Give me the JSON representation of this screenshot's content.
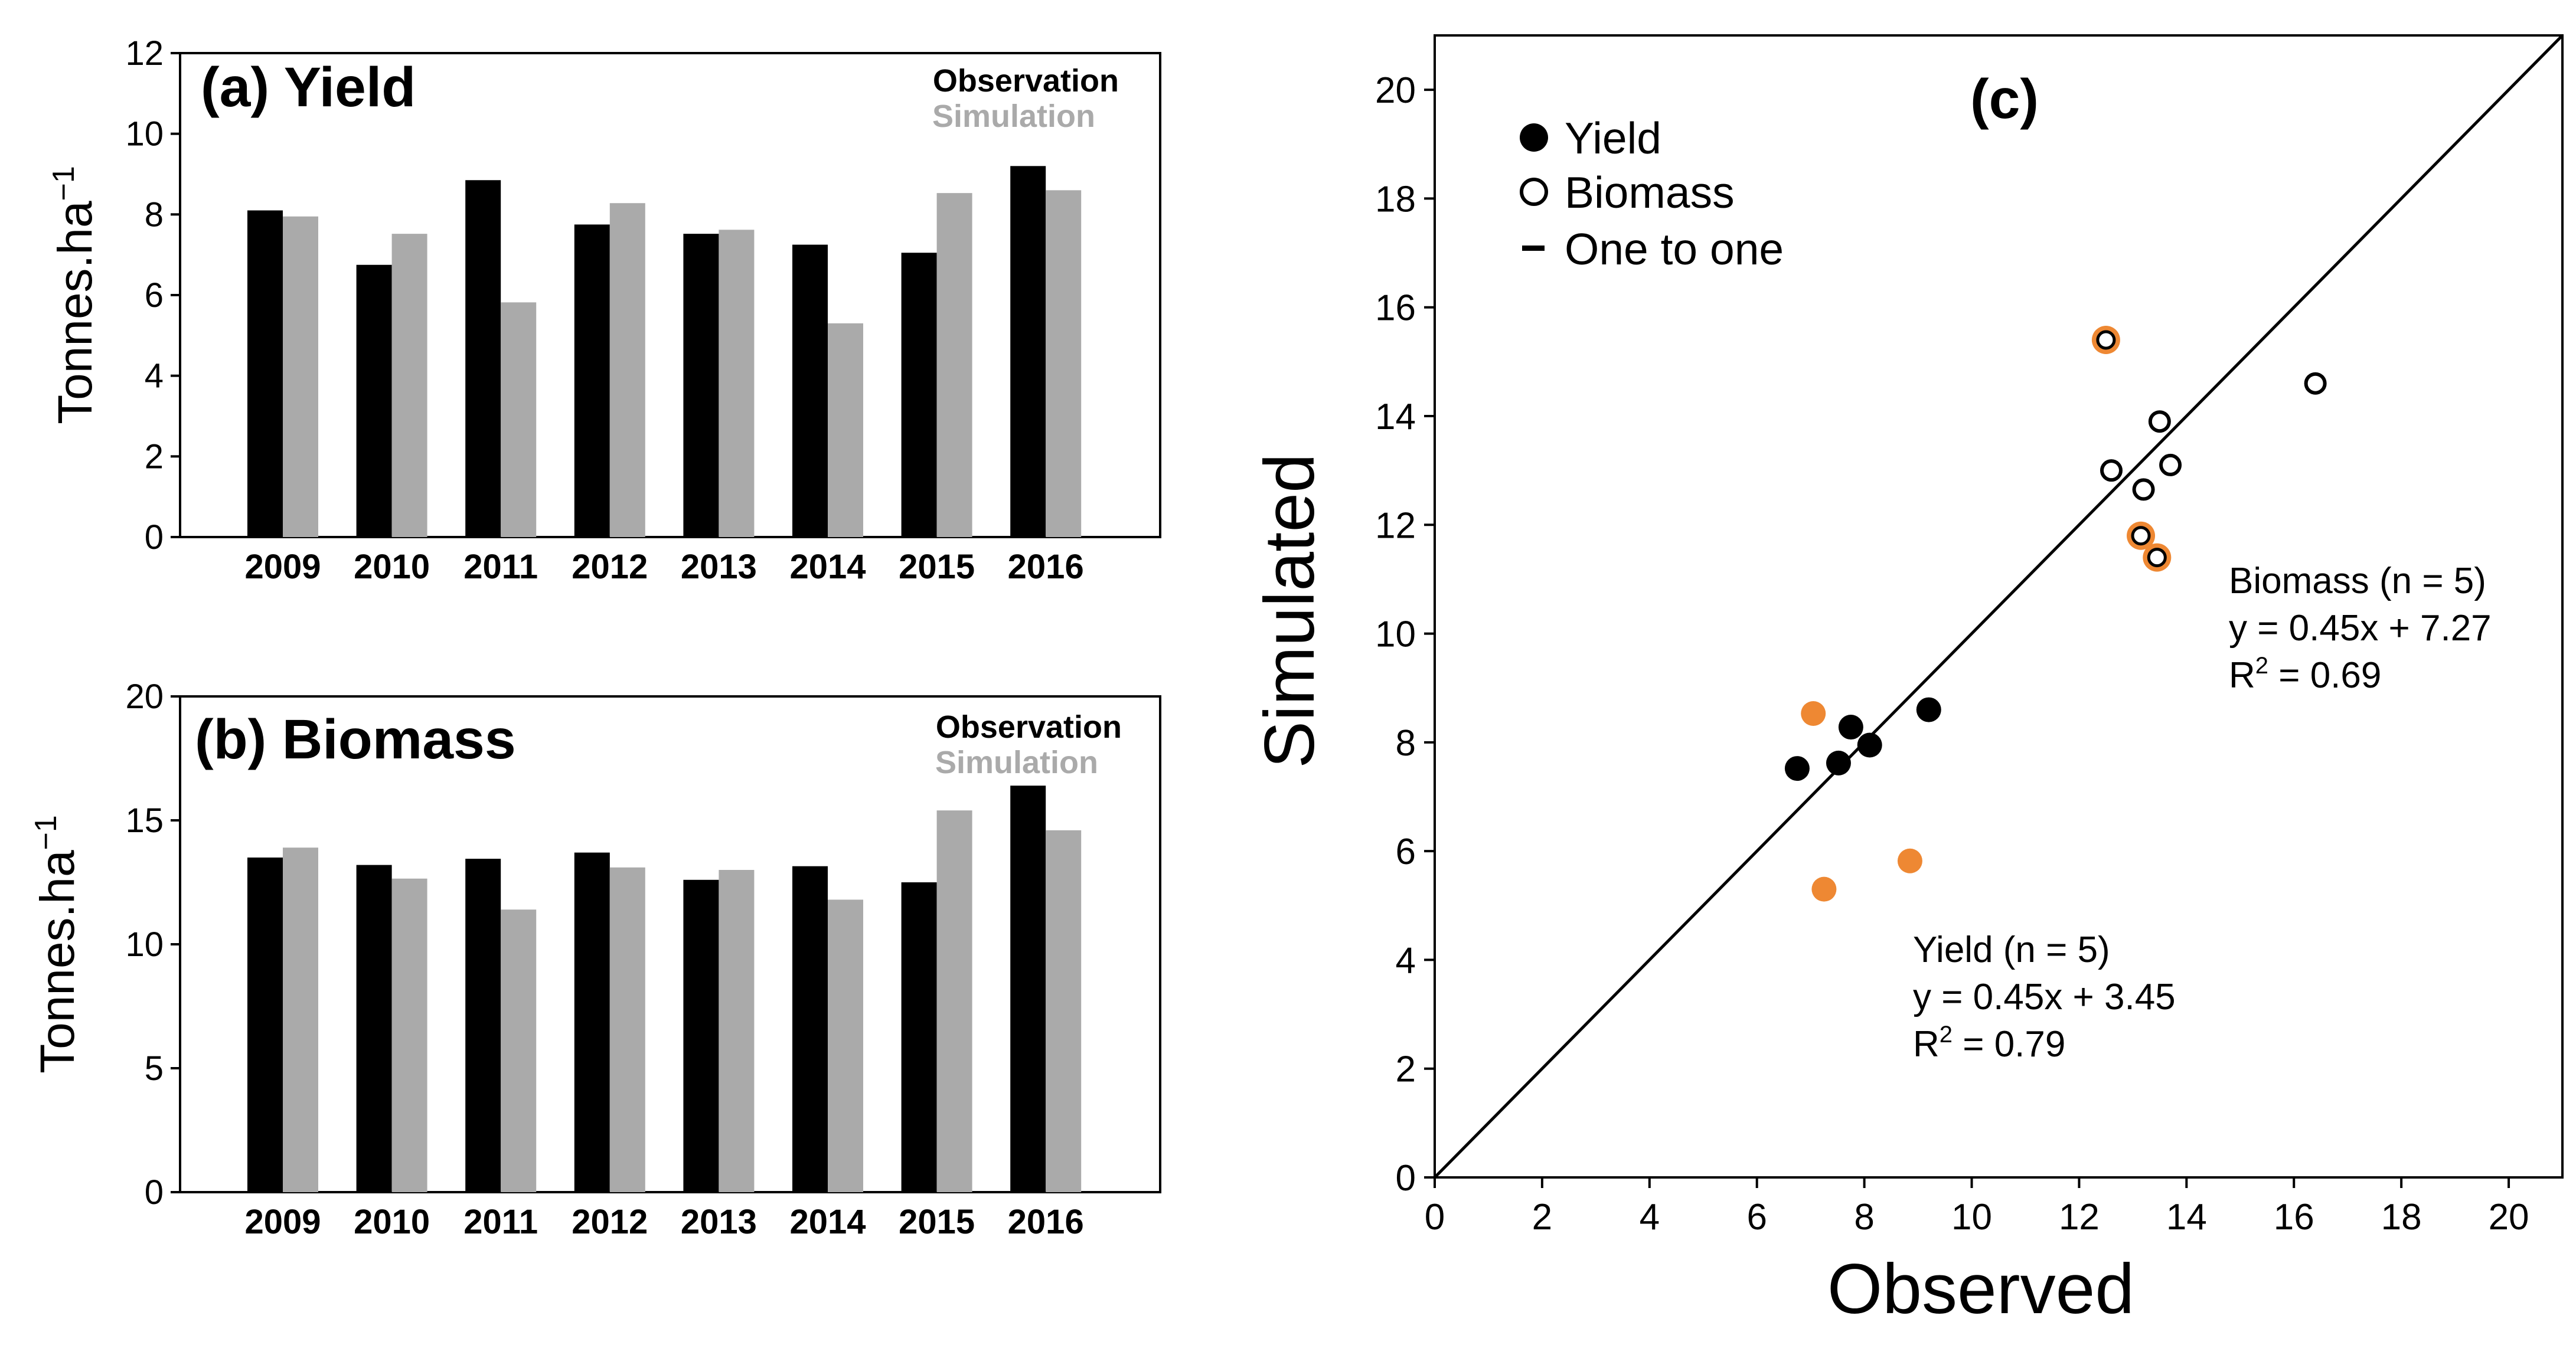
{
  "chart_data": [
    {
      "type": "bar",
      "panel": "a",
      "title": "(a) Yield",
      "ylabel": "Tonnes.ha",
      "ylabel_sup": "−1",
      "categories": [
        "2009",
        "2010",
        "2011",
        "2012",
        "2013",
        "2014",
        "2015",
        "2016"
      ],
      "series": [
        {
          "name": "Observation",
          "color": "#000000",
          "values": [
            8.1,
            6.75,
            8.85,
            7.75,
            7.52,
            7.25,
            7.05,
            9.2
          ]
        },
        {
          "name": "Simulation",
          "color": "#aaaaaa",
          "values": [
            7.95,
            7.52,
            5.82,
            8.28,
            7.62,
            5.3,
            8.53,
            8.6
          ]
        }
      ],
      "ylim": [
        0,
        12
      ],
      "yticks": [
        "0",
        "2",
        "4",
        "6",
        "8",
        "10",
        "12"
      ],
      "legend": "top-right"
    },
    {
      "type": "bar",
      "panel": "b",
      "title": "(b) Biomass",
      "ylabel": "Tonnes.ha",
      "ylabel_sup": "−1",
      "categories": [
        "2009",
        "2010",
        "2011",
        "2012",
        "2013",
        "2014",
        "2015",
        "2016"
      ],
      "series": [
        {
          "name": "Observation",
          "color": "#000000",
          "values": [
            13.5,
            13.2,
            13.45,
            13.7,
            12.6,
            13.15,
            12.5,
            16.4
          ]
        },
        {
          "name": "Simulation",
          "color": "#aaaaaa",
          "values": [
            13.9,
            12.65,
            11.4,
            13.1,
            13.0,
            11.8,
            15.4,
            14.6
          ]
        }
      ],
      "ylim": [
        0,
        20
      ],
      "yticks": [
        "0",
        "5",
        "10",
        "15",
        "20"
      ],
      "legend": "top-right"
    },
    {
      "type": "scatter",
      "panel": "c",
      "title": "(c)",
      "xlabel": "Observed",
      "ylabel": "Simulated",
      "xlim": [
        0,
        21
      ],
      "ylim": [
        0,
        21
      ],
      "xticks": [
        "0",
        "2",
        "4",
        "6",
        "8",
        "10",
        "12",
        "14",
        "16",
        "18",
        "20"
      ],
      "yticks": [
        "0",
        "2",
        "4",
        "6",
        "8",
        "10",
        "12",
        "14",
        "16",
        "18",
        "20"
      ],
      "highlight_color": "#ee8833",
      "series": [
        {
          "name": "Yield",
          "marker": "filled-circle",
          "points": [
            [
              6.75,
              7.52,
              false
            ],
            [
              7.52,
              7.62,
              false
            ],
            [
              7.75,
              8.28,
              false
            ],
            [
              8.1,
              7.95,
              false
            ],
            [
              9.2,
              8.6,
              false
            ],
            [
              7.05,
              8.53,
              true
            ],
            [
              7.25,
              5.3,
              true
            ],
            [
              8.85,
              5.82,
              true
            ]
          ]
        },
        {
          "name": "Biomass",
          "marker": "open-circle",
          "points": [
            [
              12.6,
              13.0,
              false
            ],
            [
              13.2,
              12.65,
              false
            ],
            [
              13.5,
              13.9,
              false
            ],
            [
              13.7,
              13.1,
              false
            ],
            [
              16.4,
              14.6,
              false
            ],
            [
              12.5,
              15.4,
              true
            ],
            [
              13.15,
              11.8,
              true
            ],
            [
              13.45,
              11.4,
              true
            ]
          ]
        },
        {
          "name": "One to one",
          "marker": "line",
          "points": [
            [
              0,
              0
            ],
            [
              21,
              21
            ]
          ]
        }
      ],
      "legend": "top-left",
      "annotations": {
        "biomass": {
          "l1": "Biomass (n = 5)",
          "l2": "y = 0.45x + 7.27",
          "l3a": "R",
          "l3sup": "2",
          "l3b": " = 0.69"
        },
        "yield": {
          "l1": "Yield (n = 5)",
          "l2": "y = 0.45x + 3.45",
          "l3a": "R",
          "l3sup": "2",
          "l3b": " = 0.79"
        }
      }
    }
  ]
}
